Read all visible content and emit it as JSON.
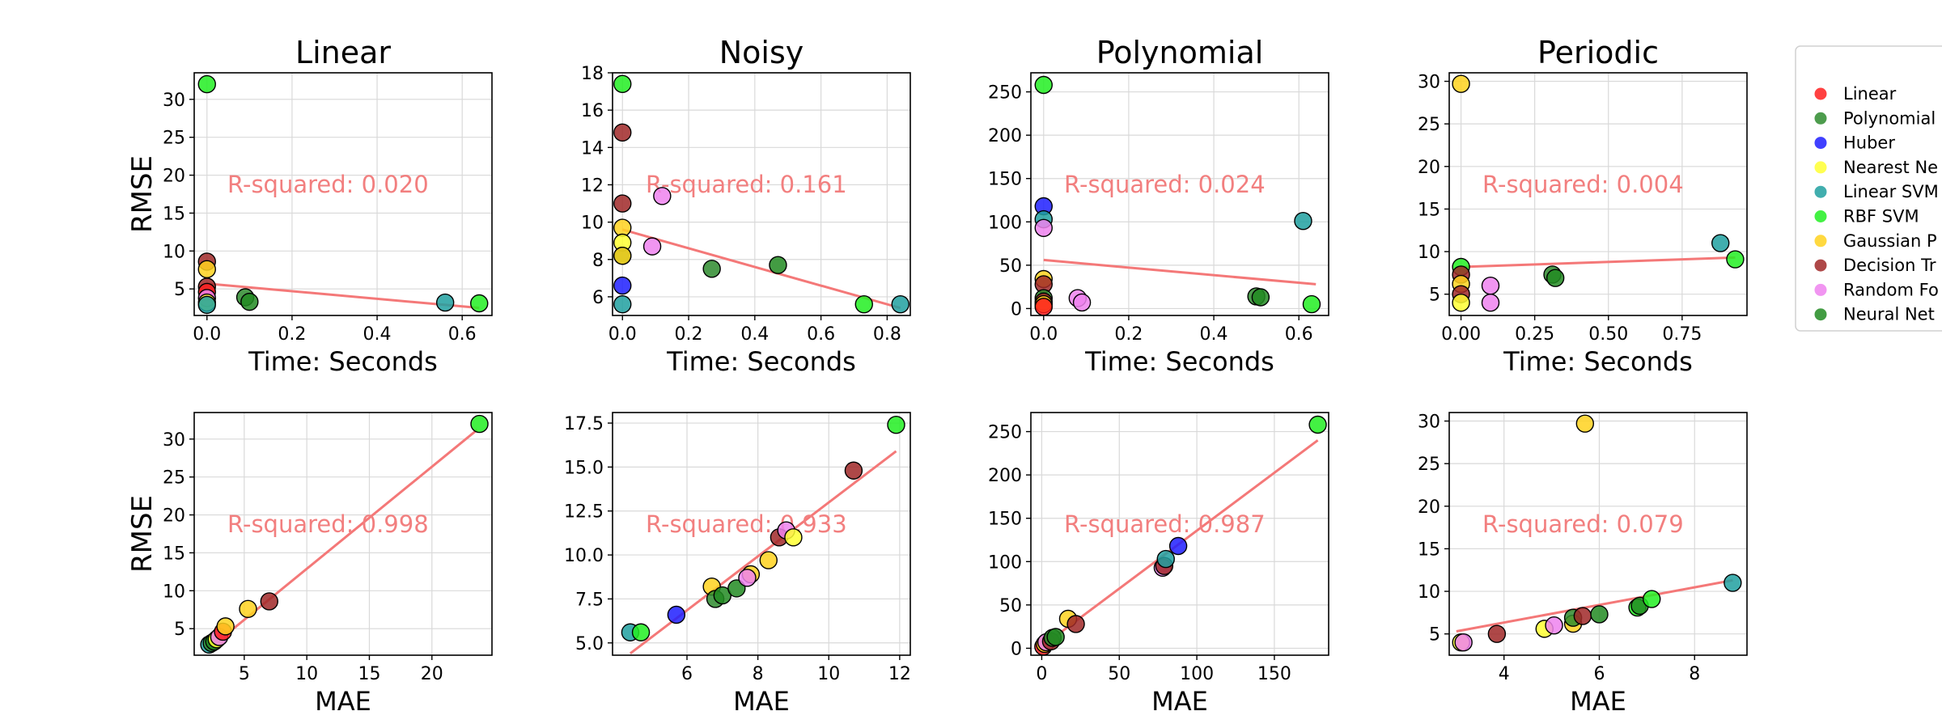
{
  "legend": {
    "entries": [
      {
        "name": "Linear",
        "color": "#ff2020"
      },
      {
        "name": "Polynomial",
        "color": "#2e8b2e"
      },
      {
        "name": "Huber",
        "color": "#1f1fff"
      },
      {
        "name": "Nearest Ne",
        "color": "#ffff33"
      },
      {
        "name": "Linear SVM",
        "color": "#20a0a0"
      },
      {
        "name": "RBF SVM",
        "color": "#22ee22"
      },
      {
        "name": "Gaussian P",
        "color": "#ffd21f"
      },
      {
        "name": "Decision Tr",
        "color": "#a02828"
      },
      {
        "name": "Random Fo",
        "color": "#ee82ee"
      },
      {
        "name": "Neural Net",
        "color": "#228b22"
      }
    ]
  },
  "chart_data": [
    {
      "type": "scatter",
      "title": "Linear",
      "xlabel": "Time: Seconds",
      "ylabel": "RMSE",
      "xlim": [
        -0.03,
        0.67
      ],
      "ylim": [
        1.5,
        33.5
      ],
      "xticks": [
        0,
        0.2,
        0.4,
        0.6
      ],
      "xticklabels": [
        "0.0",
        "0.2",
        "0.4",
        "0.6"
      ],
      "yticks": [
        5,
        10,
        15,
        20,
        25,
        30
      ],
      "yticklabels": [
        "5",
        "10",
        "15",
        "20",
        "25",
        "30"
      ],
      "annotation": "R-squared: 0.020",
      "fit": [
        [
          0.0,
          5.7
        ],
        [
          0.64,
          2.5
        ]
      ],
      "points": [
        {
          "x": 0.0,
          "y": 32.0,
          "c": 5
        },
        {
          "x": 0.0,
          "y": 8.6,
          "c": 7
        },
        {
          "x": 0.0,
          "y": 7.6,
          "c": 6
        },
        {
          "x": 0.0,
          "y": 5.3,
          "c": 7
        },
        {
          "x": 0.0,
          "y": 4.6,
          "c": 0
        },
        {
          "x": 0.0,
          "y": 3.8,
          "c": 8
        },
        {
          "x": 0.0,
          "y": 3.2,
          "c": 3
        },
        {
          "x": 0.0,
          "y": 2.9,
          "c": 4
        },
        {
          "x": 0.09,
          "y": 3.9,
          "c": 1
        },
        {
          "x": 0.1,
          "y": 3.3,
          "c": 9
        },
        {
          "x": 0.56,
          "y": 3.2,
          "c": 4
        },
        {
          "x": 0.64,
          "y": 3.1,
          "c": 5
        }
      ]
    },
    {
      "type": "scatter",
      "title": "Noisy",
      "xlabel": "Time: Seconds",
      "ylabel": "",
      "xlim": [
        -0.03,
        0.87
      ],
      "ylim": [
        5.0,
        18.0
      ],
      "xticks": [
        0,
        0.2,
        0.4,
        0.6,
        0.8
      ],
      "xticklabels": [
        "0.0",
        "0.2",
        "0.4",
        "0.6",
        "0.8"
      ],
      "yticks": [
        6,
        8,
        10,
        12,
        14,
        16,
        18
      ],
      "yticklabels": [
        "6",
        "8",
        "10",
        "12",
        "14",
        "16",
        "18"
      ],
      "annotation": "R-squared: 0.161",
      "fit": [
        [
          0.0,
          9.6
        ],
        [
          0.84,
          5.4
        ]
      ],
      "points": [
        {
          "x": 0.0,
          "y": 17.4,
          "c": 5
        },
        {
          "x": 0.0,
          "y": 14.8,
          "c": 7
        },
        {
          "x": 0.0,
          "y": 11.0,
          "c": 7
        },
        {
          "x": 0.0,
          "y": 9.7,
          "c": 6
        },
        {
          "x": 0.0,
          "y": 8.9,
          "c": 3
        },
        {
          "x": 0.0,
          "y": 8.2,
          "c": 9
        },
        {
          "x": 0.0,
          "y": 8.2,
          "c": 6
        },
        {
          "x": 0.0,
          "y": 6.6,
          "c": 2
        },
        {
          "x": 0.0,
          "y": 5.6,
          "c": 4
        },
        {
          "x": 0.09,
          "y": 8.7,
          "c": 8
        },
        {
          "x": 0.12,
          "y": 11.4,
          "c": 8
        },
        {
          "x": 0.27,
          "y": 7.5,
          "c": 1
        },
        {
          "x": 0.47,
          "y": 7.7,
          "c": 9
        },
        {
          "x": 0.73,
          "y": 5.6,
          "c": 5
        },
        {
          "x": 0.84,
          "y": 5.6,
          "c": 4
        }
      ]
    },
    {
      "type": "scatter",
      "title": "Polynomial",
      "xlabel": "Time: Seconds",
      "ylabel": "",
      "xlim": [
        -0.03,
        0.67
      ],
      "ylim": [
        -8,
        272
      ],
      "xticks": [
        0,
        0.2,
        0.4,
        0.6
      ],
      "xticklabels": [
        "0.0",
        "0.2",
        "0.4",
        "0.6"
      ],
      "yticks": [
        0,
        50,
        100,
        150,
        200,
        250
      ],
      "yticklabels": [
        "0",
        "50",
        "100",
        "150",
        "200",
        "250"
      ],
      "annotation": "R-squared: 0.024",
      "fit": [
        [
          0.0,
          56
        ],
        [
          0.64,
          28
        ]
      ],
      "points": [
        {
          "x": 0.0,
          "y": 258,
          "c": 5
        },
        {
          "x": 0.0,
          "y": 118,
          "c": 2
        },
        {
          "x": 0.0,
          "y": 103,
          "c": 4
        },
        {
          "x": 0.0,
          "y": 93,
          "c": 8
        },
        {
          "x": 0.0,
          "y": 34,
          "c": 6
        },
        {
          "x": 0.0,
          "y": 28,
          "c": 7
        },
        {
          "x": 0.0,
          "y": 12,
          "c": 1
        },
        {
          "x": 0.0,
          "y": 8,
          "c": 7
        },
        {
          "x": 0.0,
          "y": 5,
          "c": 6
        },
        {
          "x": 0.0,
          "y": 2,
          "c": 0
        },
        {
          "x": 0.08,
          "y": 12,
          "c": 8
        },
        {
          "x": 0.09,
          "y": 7,
          "c": 8
        },
        {
          "x": 0.5,
          "y": 14,
          "c": 1
        },
        {
          "x": 0.51,
          "y": 13,
          "c": 9
        },
        {
          "x": 0.61,
          "y": 101,
          "c": 4
        },
        {
          "x": 0.63,
          "y": 5,
          "c": 5
        }
      ]
    },
    {
      "type": "scatter",
      "title": "Periodic",
      "xlabel": "Time: Seconds",
      "ylabel": "",
      "xlim": [
        -0.04,
        0.97
      ],
      "ylim": [
        2.5,
        31.0
      ],
      "xticks": [
        0,
        0.25,
        0.5,
        0.75
      ],
      "xticklabels": [
        "0.00",
        "0.25",
        "0.50",
        "0.75"
      ],
      "yticks": [
        5,
        10,
        15,
        20,
        25,
        30
      ],
      "yticklabels": [
        "5",
        "10",
        "15",
        "20",
        "25",
        "30"
      ],
      "annotation": "R-squared: 0.004",
      "fit": [
        [
          0.0,
          8.2
        ],
        [
          0.93,
          9.3
        ]
      ],
      "points": [
        {
          "x": 0.0,
          "y": 29.7,
          "c": 6
        },
        {
          "x": 0.0,
          "y": 8.2,
          "c": 5
        },
        {
          "x": 0.0,
          "y": 7.3,
          "c": 7
        },
        {
          "x": 0.0,
          "y": 6.2,
          "c": 6
        },
        {
          "x": 0.0,
          "y": 5.0,
          "c": 7
        },
        {
          "x": 0.0,
          "y": 4.0,
          "c": 3
        },
        {
          "x": 0.1,
          "y": 6.0,
          "c": 8
        },
        {
          "x": 0.1,
          "y": 4.0,
          "c": 8
        },
        {
          "x": 0.31,
          "y": 7.3,
          "c": 1
        },
        {
          "x": 0.32,
          "y": 6.9,
          "c": 9
        },
        {
          "x": 0.88,
          "y": 11.0,
          "c": 4
        },
        {
          "x": 0.93,
          "y": 9.1,
          "c": 5
        }
      ]
    },
    {
      "type": "scatter",
      "title": "",
      "xlabel": "MAE",
      "ylabel": "RMSE",
      "xlim": [
        1.0,
        24.8
      ],
      "ylim": [
        1.5,
        33.5
      ],
      "xticks": [
        5,
        10,
        15,
        20
      ],
      "xticklabels": [
        "5",
        "10",
        "15",
        "20"
      ],
      "yticks": [
        5,
        10,
        15,
        20,
        25,
        30
      ],
      "yticklabels": [
        "5",
        "10",
        "15",
        "20",
        "25",
        "30"
      ],
      "annotation": "R-squared: 0.998",
      "fit": [
        [
          2.2,
          2.4
        ],
        [
          23.6,
          31.2
        ]
      ],
      "points": [
        {
          "x": 2.2,
          "y": 2.9,
          "c": 4
        },
        {
          "x": 2.4,
          "y": 3.1,
          "c": 1
        },
        {
          "x": 2.6,
          "y": 3.3,
          "c": 9
        },
        {
          "x": 2.8,
          "y": 3.6,
          "c": 3
        },
        {
          "x": 3.0,
          "y": 3.9,
          "c": 8
        },
        {
          "x": 3.3,
          "y": 4.6,
          "c": 0
        },
        {
          "x": 3.5,
          "y": 5.3,
          "c": 6
        },
        {
          "x": 5.3,
          "y": 7.6,
          "c": 6
        },
        {
          "x": 7.0,
          "y": 8.6,
          "c": 7
        },
        {
          "x": 23.8,
          "y": 32.0,
          "c": 5
        }
      ]
    },
    {
      "type": "scatter",
      "title": "",
      "xlabel": "MAE",
      "ylabel": "",
      "xlim": [
        3.9,
        12.3
      ],
      "ylim": [
        4.3,
        18.1
      ],
      "xticks": [
        6,
        8,
        10,
        12
      ],
      "xticklabels": [
        "6",
        "8",
        "10",
        "12"
      ],
      "yticks": [
        5.0,
        7.5,
        10.0,
        12.5,
        15.0,
        17.5
      ],
      "yticklabels": [
        "5.0",
        "7.5",
        "10.0",
        "12.5",
        "15.0",
        "17.5"
      ],
      "annotation": "R-squared: 0.933",
      "fit": [
        [
          4.4,
          4.4
        ],
        [
          11.9,
          15.9
        ]
      ],
      "points": [
        {
          "x": 4.4,
          "y": 5.6,
          "c": 4
        },
        {
          "x": 4.7,
          "y": 5.6,
          "c": 5
        },
        {
          "x": 5.7,
          "y": 6.6,
          "c": 2
        },
        {
          "x": 6.7,
          "y": 8.2,
          "c": 6
        },
        {
          "x": 6.8,
          "y": 7.5,
          "c": 1
        },
        {
          "x": 7.0,
          "y": 7.7,
          "c": 9
        },
        {
          "x": 7.4,
          "y": 8.1,
          "c": 9
        },
        {
          "x": 7.8,
          "y": 8.9,
          "c": 6
        },
        {
          "x": 7.7,
          "y": 8.7,
          "c": 8
        },
        {
          "x": 8.3,
          "y": 9.7,
          "c": 6
        },
        {
          "x": 8.6,
          "y": 11.0,
          "c": 7
        },
        {
          "x": 8.8,
          "y": 11.4,
          "c": 8
        },
        {
          "x": 9.0,
          "y": 11.0,
          "c": 3
        },
        {
          "x": 10.7,
          "y": 14.8,
          "c": 7
        },
        {
          "x": 11.9,
          "y": 17.4,
          "c": 5
        }
      ]
    },
    {
      "type": "scatter",
      "title": "",
      "xlabel": "MAE",
      "ylabel": "",
      "xlim": [
        -7,
        185
      ],
      "ylim": [
        -8,
        272
      ],
      "xticks": [
        0,
        50,
        100,
        150
      ],
      "xticklabels": [
        "0",
        "50",
        "100",
        "150"
      ],
      "yticks": [
        0,
        50,
        100,
        150,
        200,
        250
      ],
      "yticklabels": [
        "0",
        "50",
        "100",
        "150",
        "200",
        "250"
      ],
      "annotation": "R-squared: 0.987",
      "fit": [
        [
          0,
          2
        ],
        [
          178,
          240
        ]
      ],
      "points": [
        {
          "x": 1,
          "y": 2,
          "c": 0
        },
        {
          "x": 2,
          "y": 5,
          "c": 6
        },
        {
          "x": 3,
          "y": 7,
          "c": 8
        },
        {
          "x": 6,
          "y": 8,
          "c": 7
        },
        {
          "x": 7,
          "y": 12,
          "c": 1
        },
        {
          "x": 9,
          "y": 13,
          "c": 9
        },
        {
          "x": 17,
          "y": 34,
          "c": 6
        },
        {
          "x": 22,
          "y": 28,
          "c": 7
        },
        {
          "x": 78,
          "y": 93,
          "c": 8
        },
        {
          "x": 79,
          "y": 95,
          "c": 7
        },
        {
          "x": 80,
          "y": 103,
          "c": 4
        },
        {
          "x": 88,
          "y": 118,
          "c": 2
        },
        {
          "x": 178,
          "y": 258,
          "c": 5
        }
      ]
    },
    {
      "type": "scatter",
      "title": "",
      "xlabel": "MAE",
      "ylabel": "",
      "xlim": [
        2.85,
        9.1
      ],
      "ylim": [
        2.5,
        31.0
      ],
      "xticks": [
        4,
        6,
        8
      ],
      "xticklabels": [
        "4",
        "6",
        "8"
      ],
      "yticks": [
        5,
        10,
        15,
        20,
        25,
        30
      ],
      "yticklabels": [
        "5",
        "10",
        "15",
        "20",
        "25",
        "30"
      ],
      "annotation": "R-squared: 0.079",
      "fit": [
        [
          3.0,
          5.3
        ],
        [
          8.8,
          11.3
        ]
      ],
      "points": [
        {
          "x": 3.1,
          "y": 4.0,
          "c": 3
        },
        {
          "x": 3.15,
          "y": 4.0,
          "c": 8
        },
        {
          "x": 3.85,
          "y": 5.0,
          "c": 7
        },
        {
          "x": 4.85,
          "y": 5.6,
          "c": 3
        },
        {
          "x": 5.05,
          "y": 6.0,
          "c": 8
        },
        {
          "x": 5.45,
          "y": 6.2,
          "c": 6
        },
        {
          "x": 5.45,
          "y": 6.9,
          "c": 1
        },
        {
          "x": 5.65,
          "y": 7.1,
          "c": 7
        },
        {
          "x": 5.7,
          "y": 29.7,
          "c": 6
        },
        {
          "x": 6.0,
          "y": 7.3,
          "c": 9
        },
        {
          "x": 6.8,
          "y": 8.1,
          "c": 5
        },
        {
          "x": 6.85,
          "y": 8.3,
          "c": 9
        },
        {
          "x": 7.1,
          "y": 9.1,
          "c": 5
        },
        {
          "x": 8.8,
          "y": 11.0,
          "c": 4
        }
      ]
    }
  ]
}
